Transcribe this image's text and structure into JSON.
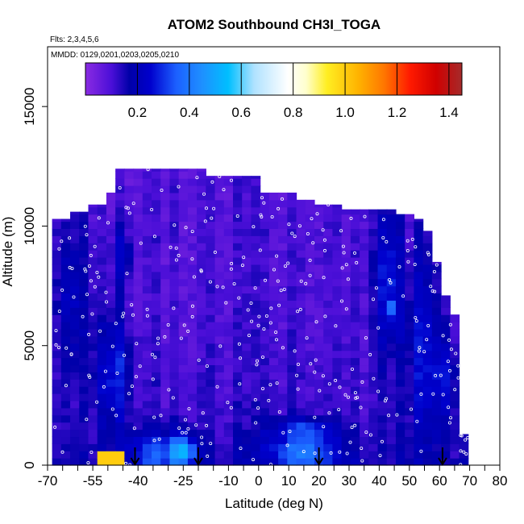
{
  "chart_data": {
    "type": "heatmap",
    "title": "ATOM2 Southbound CH3I_TOGA",
    "flights_label": "Flts: 2,3,4,5,6",
    "dates_label": "MMDD: 0129,0201,0203,0205,0210",
    "xlabel": "Latitude (deg N)",
    "ylabel": "Altitude (m)",
    "xlim": [
      -70,
      80
    ],
    "ylim": [
      0,
      17500
    ],
    "x_ticks": [
      -70,
      -65,
      -60,
      -55,
      -50,
      -45,
      -40,
      -35,
      -30,
      -25,
      -20,
      -15,
      -10,
      -5,
      0,
      5,
      10,
      15,
      20,
      25,
      30,
      35,
      40,
      45,
      50,
      55,
      60,
      65,
      70,
      75,
      80
    ],
    "x_tick_labels": [
      "-70",
      "-55",
      "-40",
      "-25",
      "-10",
      "0",
      "10",
      "20",
      "30",
      "40",
      "50",
      "60",
      "70",
      "80"
    ],
    "x_tick_label_values": [
      -70,
      -55,
      -40,
      -25,
      -10,
      0,
      10,
      20,
      30,
      40,
      50,
      60,
      70,
      80
    ],
    "y_ticks": [
      0,
      5000,
      10000,
      15000
    ],
    "y_tick_labels": [
      "0",
      "5000",
      "10000",
      "15000"
    ],
    "colorbar": {
      "range": [
        0,
        1.45
      ],
      "ticks": [
        0.2,
        0.4,
        0.6,
        0.8,
        1.0,
        1.2,
        1.4
      ],
      "tick_labels": [
        "0.2",
        "0.4",
        "0.6",
        "0.8",
        "1.0",
        "1.2",
        "1.4"
      ],
      "dividers": [
        0.2,
        0.4,
        0.6,
        0.8,
        1.0,
        1.2,
        1.4
      ],
      "stops": [
        {
          "v": 0.0,
          "c": "#8a2be2"
        },
        {
          "v": 0.1,
          "c": "#4b0fd8"
        },
        {
          "v": 0.17,
          "c": "#0000a8"
        },
        {
          "v": 0.25,
          "c": "#0000cd"
        },
        {
          "v": 0.35,
          "c": "#1c60ff"
        },
        {
          "v": 0.45,
          "c": "#1e90ff"
        },
        {
          "v": 0.55,
          "c": "#00bfff"
        },
        {
          "v": 0.65,
          "c": "#b0e2ff"
        },
        {
          "v": 0.78,
          "c": "#ffffff"
        },
        {
          "v": 0.85,
          "c": "#ffffcc"
        },
        {
          "v": 0.93,
          "c": "#ffee22"
        },
        {
          "v": 1.05,
          "c": "#ffb300"
        },
        {
          "v": 1.15,
          "c": "#ff7700"
        },
        {
          "v": 1.25,
          "c": "#ff1a00"
        },
        {
          "v": 1.35,
          "c": "#d00000"
        },
        {
          "v": 1.45,
          "c": "#a52a2a"
        }
      ]
    },
    "field": {
      "lat_bins": [
        -67,
        -64,
        -61,
        -58,
        -55,
        -52,
        -49,
        -46,
        -43,
        -40,
        -37,
        -34,
        -31,
        -28,
        -25,
        -22,
        -19,
        -16,
        -13,
        -10,
        -7,
        -4,
        -1,
        2,
        5,
        8,
        11,
        14,
        17,
        20,
        23,
        26,
        29,
        32,
        35,
        38,
        41,
        44,
        47,
        50,
        53,
        56,
        59,
        62,
        65,
        68
      ],
      "top_altitude_m": [
        10300,
        10300,
        10600,
        10600,
        10900,
        10900,
        11400,
        12400,
        12400,
        12400,
        12400,
        12400,
        12400,
        12400,
        12400,
        12400,
        12400,
        12100,
        12100,
        12100,
        12100,
        12100,
        12100,
        11400,
        11400,
        11400,
        11400,
        11100,
        11100,
        10900,
        10900,
        10900,
        10700,
        10700,
        10700,
        10700,
        10700,
        10700,
        10500,
        10500,
        10300,
        9800,
        8500,
        7100,
        6300,
        1300
      ],
      "base_level": 0.1,
      "blobs": [
        {
          "lat": -62,
          "alt": 7000,
          "sx": 5,
          "sy": 3500,
          "amp": 0.12
        },
        {
          "lat": -48,
          "alt": 4000,
          "sx": 6,
          "sy": 2500,
          "amp": 0.18
        },
        {
          "lat": -45,
          "alt": 8800,
          "sx": 3,
          "sy": 1200,
          "amp": 0.15
        },
        {
          "lat": -35,
          "alt": 500,
          "sx": 9,
          "sy": 900,
          "amp": 0.2
        },
        {
          "lat": -25,
          "alt": 600,
          "sx": 4,
          "sy": 700,
          "amp": 0.35
        },
        {
          "lat": 15,
          "alt": 600,
          "sx": 12,
          "sy": 900,
          "amp": 0.25
        },
        {
          "lat": 15,
          "alt": 1600,
          "sx": 10,
          "sy": 400,
          "amp": 0.12
        },
        {
          "lat": 43,
          "alt": 7800,
          "sx": 5,
          "sy": 3000,
          "amp": 0.18
        },
        {
          "lat": 45,
          "alt": 6600,
          "sx": 1.2,
          "sy": 300,
          "amp": 0.3
        },
        {
          "lat": 55,
          "alt": 5000,
          "sx": 6,
          "sy": 4000,
          "amp": 0.15
        },
        {
          "lat": 62,
          "alt": 3500,
          "sx": 4,
          "sy": 2000,
          "amp": 0.12
        }
      ],
      "hotspots": [
        {
          "lat_min": -51,
          "lat_max": -47,
          "alt_min": 0,
          "alt_max": 450,
          "value": 1.0
        }
      ]
    },
    "profile_arrows_lat": [
      -41,
      -20,
      20,
      61
    ]
  }
}
